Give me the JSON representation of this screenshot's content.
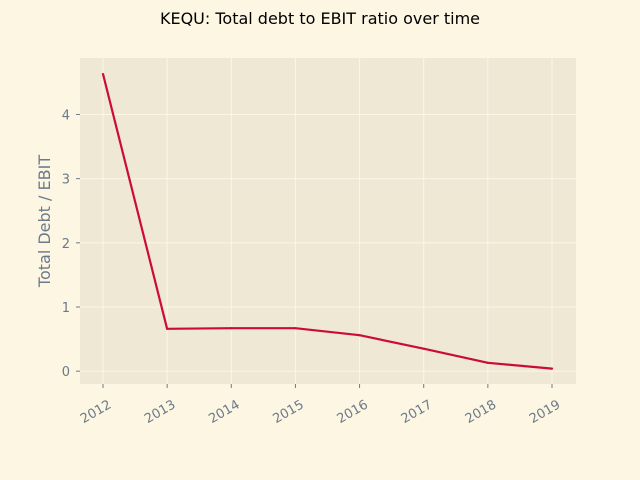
{
  "chart_data": {
    "type": "line",
    "title": "KEQU: Total debt to EBIT ratio over time",
    "xlabel": "",
    "ylabel": "Total Debt / EBIT",
    "x": [
      "2012",
      "2013",
      "2014",
      "2015",
      "2016",
      "2017",
      "2018",
      "2019"
    ],
    "series": [
      {
        "values": [
          4.63,
          0.66,
          0.67,
          0.67,
          0.56,
          0.35,
          0.13,
          0.04
        ]
      }
    ],
    "yticks": [
      0,
      1,
      2,
      3,
      4
    ],
    "ylim": [
      -0.2,
      4.88
    ],
    "grid": true,
    "legend": "none",
    "colors": {
      "figure_bg": "#fdf6e3",
      "plot_bg": "#eee8d5",
      "grid": "#fdf6e3",
      "line": "#cc0c35",
      "text": "#6b7a8a"
    }
  }
}
